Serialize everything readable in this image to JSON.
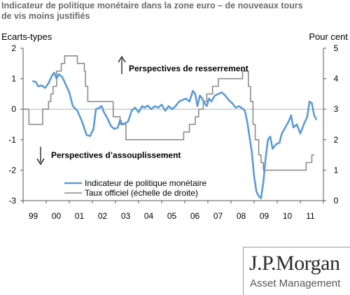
{
  "title_line1": "Indicateur de politique monétaire dans la zone euro – de nouveaux tours",
  "title_line2": "de vis moins justifiés",
  "logo": {
    "main": "J.P.Morgan",
    "sub": "Asset Management"
  },
  "chart_data": {
    "type": "line",
    "left_axis": {
      "label": "Ecarts-types",
      "range": [
        -3,
        2
      ],
      "ticks": [
        2,
        1,
        0,
        -1,
        -2,
        -3
      ]
    },
    "right_axis": {
      "label": "Pour cent",
      "range": [
        0,
        5
      ],
      "ticks": [
        5,
        4,
        3,
        2,
        1,
        0
      ]
    },
    "x_ticks": [
      "99",
      "00",
      "01",
      "02",
      "03",
      "04",
      "05",
      "06",
      "07",
      "08",
      "09",
      "10",
      "11"
    ],
    "x_range": [
      1999.0,
      2012.0
    ],
    "annotations": {
      "up": "Perspectives de resserrement",
      "down": "Perspectives d’assouplissement"
    },
    "colors": {
      "indicator": "#5b9bd5",
      "rate": "#8c8c8c",
      "axis": "#555555"
    },
    "series": [
      {
        "name": "Indicateur de politique monétaire",
        "axis": "left",
        "points": [
          [
            1999.4,
            0.92
          ],
          [
            1999.55,
            0.9
          ],
          [
            1999.65,
            0.75
          ],
          [
            1999.8,
            0.78
          ],
          [
            1999.95,
            0.7
          ],
          [
            2000.1,
            0.85
          ],
          [
            2000.25,
            1.1
          ],
          [
            2000.35,
            1.2
          ],
          [
            2000.45,
            1.0
          ],
          [
            2000.55,
            1.15
          ],
          [
            2000.7,
            1.05
          ],
          [
            2000.85,
            0.8
          ],
          [
            2001.0,
            0.55
          ],
          [
            2001.15,
            0.1
          ],
          [
            2001.35,
            -0.05
          ],
          [
            2001.55,
            -0.4
          ],
          [
            2001.75,
            -0.85
          ],
          [
            2001.9,
            -0.88
          ],
          [
            2002.05,
            -0.65
          ],
          [
            2002.15,
            0.0
          ],
          [
            2002.3,
            0.05
          ],
          [
            2002.4,
            0.1
          ],
          [
            2002.5,
            -0.1
          ],
          [
            2002.65,
            -0.3
          ],
          [
            2002.8,
            -0.55
          ],
          [
            2002.95,
            -0.65
          ],
          [
            2003.1,
            -0.6
          ],
          [
            2003.2,
            -0.35
          ],
          [
            2003.3,
            -0.5
          ],
          [
            2003.45,
            -0.45
          ],
          [
            2003.55,
            -0.4
          ],
          [
            2003.7,
            -0.05
          ],
          [
            2003.85,
            0.05
          ],
          [
            2004.0,
            -0.1
          ],
          [
            2004.15,
            0.1
          ],
          [
            2004.25,
            0.05
          ],
          [
            2004.4,
            0.12
          ],
          [
            2004.55,
            0.0
          ],
          [
            2004.7,
            0.1
          ],
          [
            2004.85,
            0.05
          ],
          [
            2005.0,
            0.15
          ],
          [
            2005.15,
            -0.05
          ],
          [
            2005.3,
            0.1
          ],
          [
            2005.45,
            0.0
          ],
          [
            2005.6,
            0.1
          ],
          [
            2005.75,
            0.25
          ],
          [
            2005.9,
            0.3
          ],
          [
            2006.05,
            0.35
          ],
          [
            2006.2,
            0.25
          ],
          [
            2006.35,
            0.6
          ],
          [
            2006.45,
            0.5
          ],
          [
            2006.55,
            0.1
          ],
          [
            2006.65,
            0.45
          ],
          [
            2006.75,
            0.35
          ],
          [
            2006.85,
            0.2
          ],
          [
            2006.95,
            0.1
          ],
          [
            2007.05,
            0.35
          ],
          [
            2007.15,
            0.25
          ],
          [
            2007.3,
            0.45
          ],
          [
            2007.45,
            0.5
          ],
          [
            2007.6,
            0.55
          ],
          [
            2007.75,
            0.45
          ],
          [
            2007.9,
            0.3
          ],
          [
            2008.05,
            0.2
          ],
          [
            2008.2,
            0.05
          ],
          [
            2008.35,
            0.1
          ],
          [
            2008.5,
            0.02
          ],
          [
            2008.6,
            -0.05
          ],
          [
            2008.7,
            -0.4
          ],
          [
            2008.8,
            -0.9
          ],
          [
            2008.9,
            -1.4
          ],
          [
            2009.0,
            -2.2
          ],
          [
            2009.1,
            -2.7
          ],
          [
            2009.2,
            -2.85
          ],
          [
            2009.3,
            -2.92
          ],
          [
            2009.4,
            -2.4
          ],
          [
            2009.5,
            -1.6
          ],
          [
            2009.6,
            -1.0
          ],
          [
            2009.7,
            -0.9
          ],
          [
            2009.8,
            -1.3
          ],
          [
            2009.95,
            -1.15
          ],
          [
            2010.1,
            -1.1
          ],
          [
            2010.2,
            -0.8
          ],
          [
            2010.35,
            -0.6
          ],
          [
            2010.5,
            -0.4
          ],
          [
            2010.6,
            -0.2
          ],
          [
            2010.7,
            -0.6
          ],
          [
            2010.85,
            -0.5
          ],
          [
            2011.0,
            -0.8
          ],
          [
            2011.15,
            -0.5
          ],
          [
            2011.3,
            -0.25
          ],
          [
            2011.4,
            0.25
          ],
          [
            2011.5,
            0.2
          ],
          [
            2011.6,
            -0.2
          ],
          [
            2011.7,
            -0.35
          ]
        ]
      },
      {
        "name": "Taux officiel (échelle de droite)",
        "axis": "right",
        "points": [
          [
            1999.0,
            3.0
          ],
          [
            1999.25,
            3.0
          ],
          [
            1999.25,
            2.5
          ],
          [
            1999.85,
            2.5
          ],
          [
            1999.85,
            3.0
          ],
          [
            2000.1,
            3.0
          ],
          [
            2000.1,
            3.25
          ],
          [
            2000.2,
            3.25
          ],
          [
            2000.2,
            3.5
          ],
          [
            2000.3,
            3.5
          ],
          [
            2000.3,
            3.75
          ],
          [
            2000.45,
            3.75
          ],
          [
            2000.45,
            4.25
          ],
          [
            2000.65,
            4.25
          ],
          [
            2000.65,
            4.5
          ],
          [
            2000.8,
            4.5
          ],
          [
            2000.8,
            4.75
          ],
          [
            2001.35,
            4.75
          ],
          [
            2001.35,
            4.5
          ],
          [
            2001.65,
            4.5
          ],
          [
            2001.65,
            4.25
          ],
          [
            2001.7,
            4.25
          ],
          [
            2001.7,
            3.75
          ],
          [
            2001.8,
            3.75
          ],
          [
            2001.8,
            3.25
          ],
          [
            2002.9,
            3.25
          ],
          [
            2002.9,
            2.75
          ],
          [
            2003.2,
            2.75
          ],
          [
            2003.2,
            2.5
          ],
          [
            2003.45,
            2.5
          ],
          [
            2003.45,
            2.0
          ],
          [
            2005.95,
            2.0
          ],
          [
            2005.95,
            2.25
          ],
          [
            2006.2,
            2.25
          ],
          [
            2006.2,
            2.5
          ],
          [
            2006.45,
            2.5
          ],
          [
            2006.45,
            2.75
          ],
          [
            2006.6,
            2.75
          ],
          [
            2006.6,
            3.0
          ],
          [
            2006.8,
            3.0
          ],
          [
            2006.8,
            3.25
          ],
          [
            2006.95,
            3.25
          ],
          [
            2006.95,
            3.5
          ],
          [
            2007.2,
            3.5
          ],
          [
            2007.2,
            3.75
          ],
          [
            2007.45,
            3.75
          ],
          [
            2007.45,
            4.0
          ],
          [
            2008.5,
            4.0
          ],
          [
            2008.5,
            4.25
          ],
          [
            2008.75,
            4.25
          ],
          [
            2008.75,
            3.75
          ],
          [
            2008.85,
            3.75
          ],
          [
            2008.85,
            3.25
          ],
          [
            2008.95,
            3.25
          ],
          [
            2008.95,
            2.5
          ],
          [
            2009.05,
            2.5
          ],
          [
            2009.05,
            2.0
          ],
          [
            2009.2,
            2.0
          ],
          [
            2009.2,
            1.5
          ],
          [
            2009.3,
            1.5
          ],
          [
            2009.3,
            1.25
          ],
          [
            2009.4,
            1.25
          ],
          [
            2009.4,
            1.0
          ],
          [
            2011.25,
            1.0
          ],
          [
            2011.25,
            1.25
          ],
          [
            2011.5,
            1.25
          ],
          [
            2011.5,
            1.5
          ],
          [
            2011.6,
            1.5
          ]
        ]
      }
    ]
  }
}
